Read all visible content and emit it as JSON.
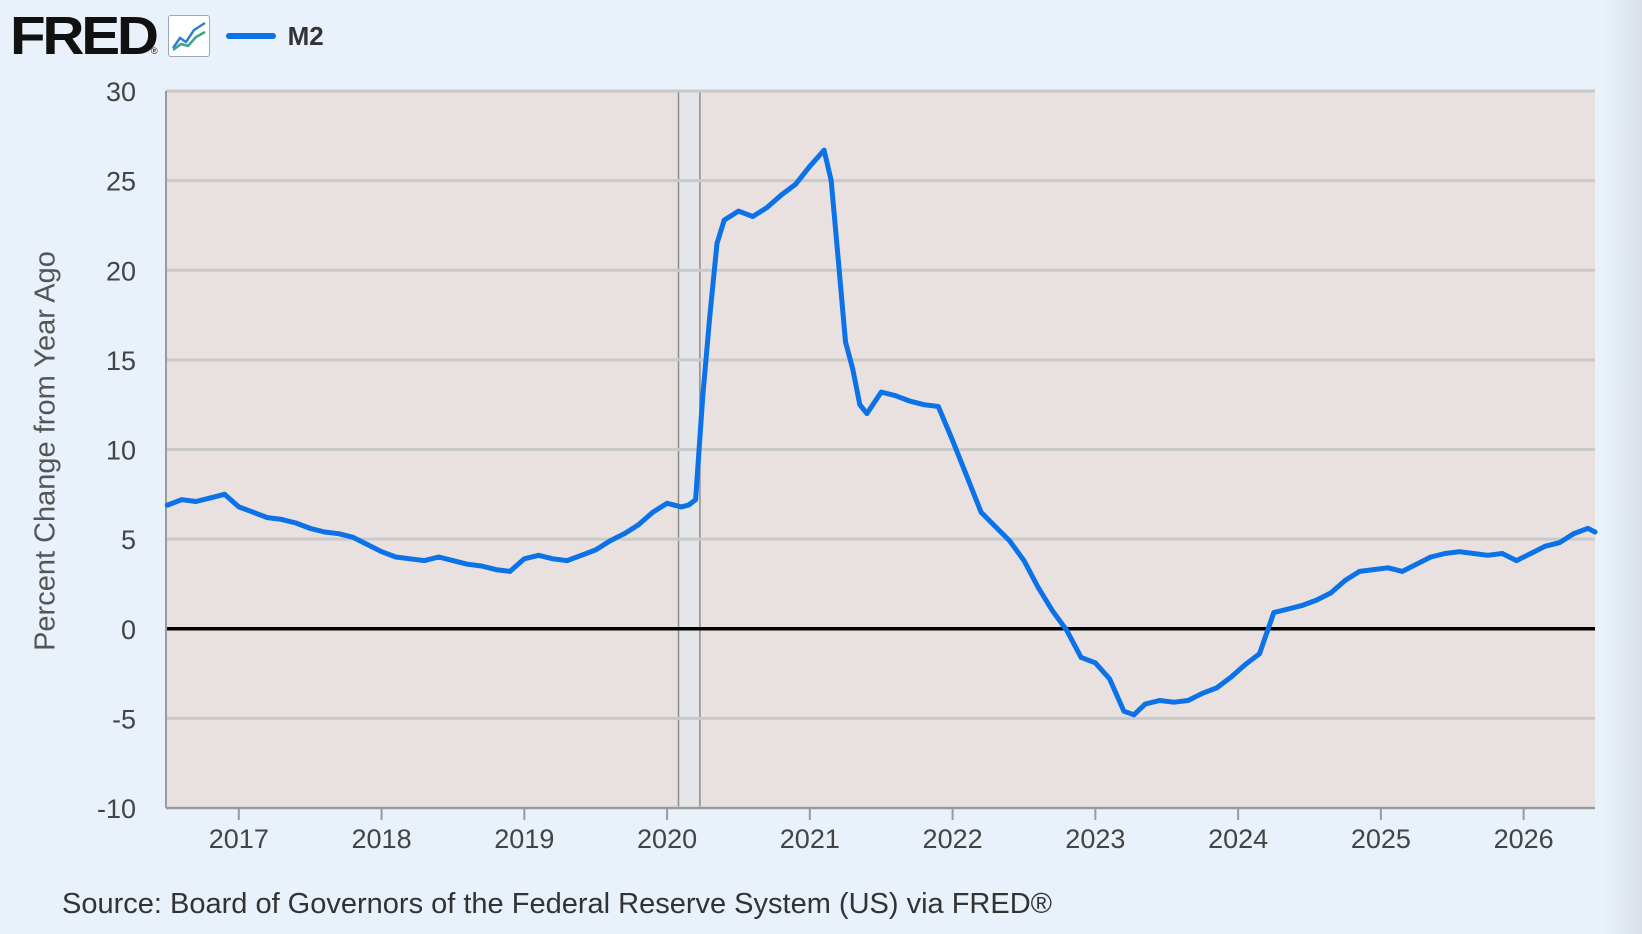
{
  "header": {
    "logo_text": "FRED",
    "logo_reg": "®",
    "chart_icon": "line-chart-icon",
    "legend_label": "M2",
    "legend_color": "#0b72e7"
  },
  "footer": {
    "source": "Source: Board of Governors of the Federal Reserve System (US) via FRED®"
  },
  "colors": {
    "page_bg": "#e9f1fb",
    "plot_bg": "#e9e0e0",
    "grid": "#c9c9c9",
    "zero_line": "#000000",
    "recession_band": "#e4e6ea",
    "series": "#0b72e7"
  },
  "chart_data": {
    "type": "line",
    "title": "",
    "xlabel": "",
    "ylabel": "Percent Change from Year Ago",
    "xlim": [
      2016.49,
      2026.5
    ],
    "ylim": [
      -10,
      30
    ],
    "y_ticks": [
      "30",
      "25",
      "20",
      "15",
      "10",
      "5",
      "0",
      "-5",
      "-10"
    ],
    "x_ticks": [
      "2017",
      "2018",
      "2019",
      "2020",
      "2021",
      "2022",
      "2023",
      "2024",
      "2025",
      "2026"
    ],
    "grid": true,
    "legend_position": "top-left",
    "recession_shading": [
      [
        2020.08,
        2020.23
      ]
    ],
    "series": [
      {
        "name": "M2",
        "color": "#0b72e7",
        "x": [
          2016.5,
          2016.6,
          2016.7,
          2016.8,
          2016.9,
          2017.0,
          2017.1,
          2017.2,
          2017.3,
          2017.4,
          2017.5,
          2017.6,
          2017.7,
          2017.8,
          2017.9,
          2018.0,
          2018.1,
          2018.2,
          2018.3,
          2018.4,
          2018.5,
          2018.6,
          2018.7,
          2018.8,
          2018.9,
          2019.0,
          2019.1,
          2019.2,
          2019.3,
          2019.4,
          2019.5,
          2019.6,
          2019.7,
          2019.8,
          2019.9,
          2020.0,
          2020.1,
          2020.15,
          2020.2,
          2020.25,
          2020.3,
          2020.35,
          2020.4,
          2020.5,
          2020.6,
          2020.7,
          2020.8,
          2020.9,
          2021.0,
          2021.1,
          2021.15,
          2021.2,
          2021.25,
          2021.3,
          2021.35,
          2021.4,
          2021.5,
          2021.6,
          2021.7,
          2021.8,
          2021.9,
          2022.0,
          2022.1,
          2022.2,
          2022.3,
          2022.4,
          2022.5,
          2022.6,
          2022.7,
          2022.8,
          2022.9,
          2023.0,
          2023.1,
          2023.2,
          2023.27,
          2023.35,
          2023.45,
          2023.55,
          2023.65,
          2023.75,
          2023.85,
          2023.95,
          2024.05,
          2024.15,
          2024.25,
          2024.35,
          2024.45,
          2024.55,
          2024.65,
          2024.75,
          2024.85,
          2024.95,
          2025.05,
          2025.15,
          2025.25,
          2025.35,
          2025.45,
          2025.55,
          2025.65,
          2025.75,
          2025.85,
          2025.95,
          2026.05,
          2026.15,
          2026.25,
          2026.35,
          2026.45,
          2026.5
        ],
        "values": [
          6.9,
          7.2,
          7.1,
          7.3,
          7.5,
          6.8,
          6.5,
          6.2,
          6.1,
          5.9,
          5.6,
          5.4,
          5.3,
          5.1,
          4.7,
          4.3,
          4.0,
          3.9,
          3.8,
          4.0,
          3.8,
          3.6,
          3.5,
          3.3,
          3.2,
          3.9,
          4.1,
          3.9,
          3.8,
          4.1,
          4.4,
          4.9,
          5.3,
          5.8,
          6.5,
          7.0,
          6.8,
          6.9,
          7.2,
          13.0,
          17.5,
          21.5,
          22.8,
          23.3,
          23.0,
          23.5,
          24.2,
          24.8,
          25.8,
          26.7,
          25.0,
          20.5,
          16.0,
          14.5,
          12.5,
          12.0,
          13.2,
          13.0,
          12.7,
          12.5,
          12.4,
          10.5,
          8.5,
          6.5,
          5.7,
          4.9,
          3.8,
          2.3,
          1.0,
          -0.1,
          -1.6,
          -1.9,
          -2.8,
          -4.6,
          -4.8,
          -4.2,
          -4.0,
          -4.1,
          -4.0,
          -3.6,
          -3.3,
          -2.7,
          -2.0,
          -1.4,
          0.9,
          1.1,
          1.3,
          1.6,
          2.0,
          2.7,
          3.2,
          3.3,
          3.4,
          3.2,
          3.6,
          4.0,
          4.2,
          4.3,
          4.2,
          4.1,
          4.2,
          3.8,
          4.2,
          4.6,
          4.8,
          5.3,
          5.6,
          5.4
        ]
      }
    ]
  }
}
